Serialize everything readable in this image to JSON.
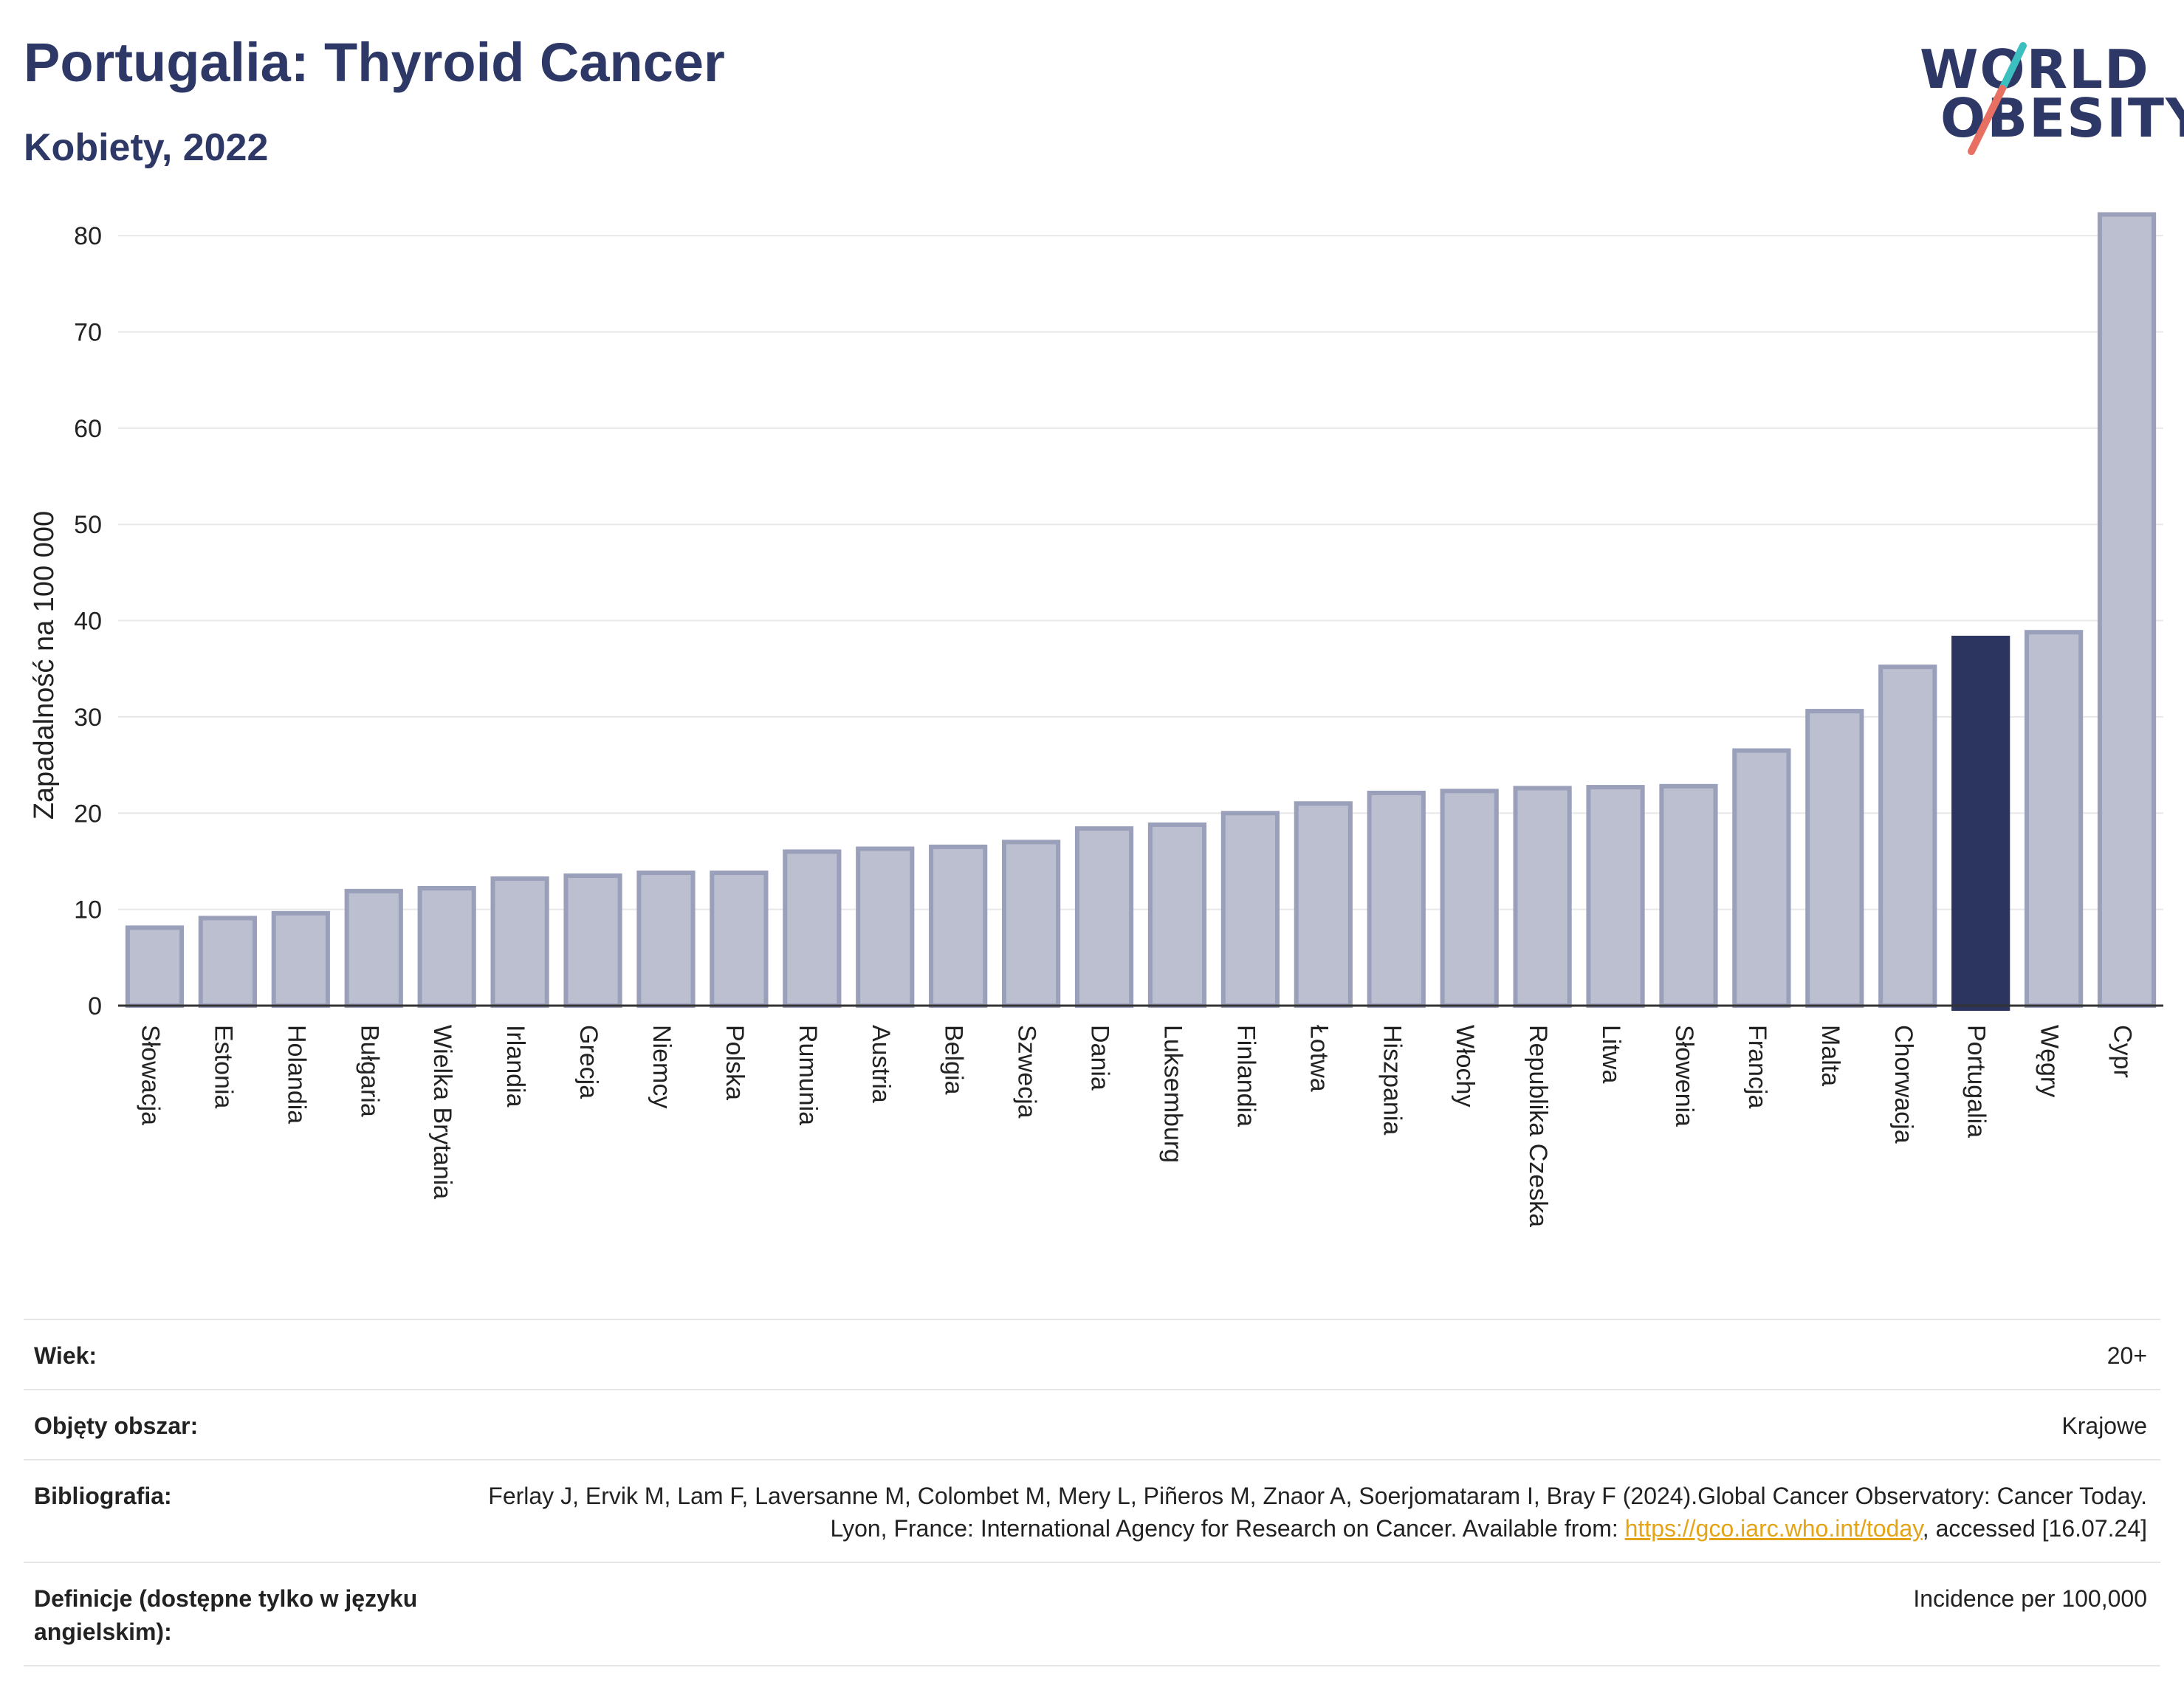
{
  "header": {
    "title": "Portugalia: Thyroid Cancer",
    "subtitle": "Kobiety, 2022"
  },
  "logo": {
    "line1": "WORLD",
    "line2": "OBESITY",
    "slash_colors": [
      "#3cbfbf",
      "#e87062"
    ]
  },
  "chart_data": {
    "type": "bar",
    "title": "Portugalia: Thyroid Cancer",
    "subtitle": "Kobiety, 2022",
    "xlabel": "",
    "ylabel": "Zapadalność na 100 000",
    "ylim": [
      0,
      83
    ],
    "yticks": [
      0,
      10,
      20,
      30,
      40,
      50,
      60,
      70,
      80
    ],
    "grid": true,
    "highlight": "Portugalia",
    "colors": {
      "bar": "#bcbfcf",
      "bar_edge": "#9a9fba",
      "highlight": "#2b3560",
      "grid": "#e8e8e8"
    },
    "categories": [
      "Słowacja",
      "Estonia",
      "Holandia",
      "Bułgaria",
      "Wielka Brytania",
      "Irlandia",
      "Grecja",
      "Niemcy",
      "Polska",
      "Rumunia",
      "Austria",
      "Belgia",
      "Szwecja",
      "Dania",
      "Luksemburg",
      "Finlandia",
      "Łotwa",
      "Hiszpania",
      "Włochy",
      "Republika Czeska",
      "Litwa",
      "Słowenia",
      "Francja",
      "Malta",
      "Chorwacja",
      "Portugalia",
      "Węgry",
      "Cypr"
    ],
    "values": [
      8.1,
      9.1,
      9.6,
      11.9,
      12.2,
      13.2,
      13.5,
      13.8,
      13.8,
      16.0,
      16.3,
      16.5,
      17.0,
      18.4,
      18.8,
      20.0,
      21.0,
      22.1,
      22.3,
      22.6,
      22.7,
      22.8,
      26.5,
      30.6,
      35.2,
      38.2,
      38.8,
      82.2
    ]
  },
  "info": {
    "rows": [
      {
        "key": "Wiek:",
        "value": "20+"
      },
      {
        "key": "Objęty obszar:",
        "value": "Krajowe"
      },
      {
        "key": "Bibliografia:",
        "value": "Ferlay J, Ervik M, Lam F, Laversanne M, Colombet M, Mery L, Piñeros M, Znaor A, Soerjomataram I, Bray F (2024).Global Cancer Observatory: Cancer Today. Lyon, France: International Agency for Research on Cancer. Available from: ",
        "link": "https://gco.iarc.who.int/today",
        "suffix": ", accessed [16.07.24]"
      },
      {
        "key": "Definicje (dostępne tylko w języku angielskim):",
        "value": "Incidence per 100,000"
      }
    ]
  }
}
